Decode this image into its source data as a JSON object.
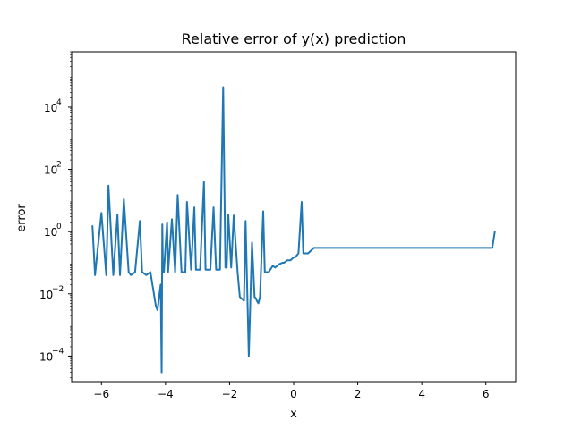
{
  "chart_data": {
    "type": "line",
    "title": "Relative error of y(x) prediction",
    "xlabel": "x",
    "ylabel": "error",
    "xlim": [
      -6.93,
      6.93
    ],
    "ylim": [
      1.51e-05,
      602000
    ],
    "yscale": "log",
    "grid": false,
    "colors": {
      "line": "#1f77b4"
    },
    "x_ticks": [
      {
        "value": -6,
        "label": "−6"
      },
      {
        "value": -4,
        "label": "−4"
      },
      {
        "value": -2,
        "label": "−2"
      },
      {
        "value": 0,
        "label": "0"
      },
      {
        "value": 2,
        "label": "2"
      },
      {
        "value": 4,
        "label": "4"
      },
      {
        "value": 6,
        "label": "6"
      }
    ],
    "y_ticks": [
      {
        "value": 0.0001,
        "base": "10",
        "exp": "−4"
      },
      {
        "value": 0.01,
        "base": "10",
        "exp": "−2"
      },
      {
        "value": 1,
        "base": "10",
        "exp": "0"
      },
      {
        "value": 100,
        "base": "10",
        "exp": "2"
      },
      {
        "value": 10000,
        "base": "10",
        "exp": "4"
      }
    ],
    "series": [
      {
        "x": [
          -6.28,
          -6.2,
          -6.0,
          -5.85,
          -5.78,
          -5.63,
          -5.5,
          -5.42,
          -5.3,
          -5.15,
          -5.08,
          -4.95,
          -4.8,
          -4.73,
          -4.6,
          -4.47,
          -4.3,
          -4.25,
          -4.2,
          -4.15,
          -4.12,
          -4.1,
          -4.08,
          -4.05,
          -3.95,
          -3.92,
          -3.8,
          -3.7,
          -3.62,
          -3.5,
          -3.38,
          -3.33,
          -3.2,
          -3.1,
          -3.05,
          -2.92,
          -2.8,
          -2.75,
          -2.6,
          -2.5,
          -2.42,
          -2.3,
          -2.2,
          -2.13,
          -2.09,
          -2.04,
          -1.95,
          -1.87,
          -1.75,
          -1.68,
          -1.55,
          -1.5,
          -1.4,
          -1.3,
          -1.22,
          -1.17,
          -1.15,
          -1.1,
          -1.05,
          -0.95,
          -0.9,
          -0.78,
          -0.65,
          -0.58,
          -0.45,
          -0.35,
          -0.3,
          -0.2,
          -0.1,
          0.0,
          0.05,
          0.15,
          0.25,
          0.3,
          0.45,
          0.55,
          0.63,
          0.75,
          0.85,
          0.95,
          1.05,
          1.15,
          1.25,
          1.35,
          1.45,
          1.55,
          1.65,
          1.75,
          1.85,
          1.95,
          2.05,
          2.1,
          2.15,
          2.25,
          2.35,
          2.45,
          2.55,
          2.7,
          2.8,
          2.9,
          3.0,
          3.15,
          3.3,
          3.4,
          3.5,
          3.6,
          3.7,
          3.85,
          3.95,
          4.05,
          4.15,
          4.25,
          4.4,
          4.5,
          4.6,
          4.7,
          4.8,
          4.9,
          5.0,
          5.05,
          5.15,
          5.25,
          5.35,
          5.4,
          5.45,
          5.5,
          5.55,
          5.6,
          5.65,
          5.75,
          5.85,
          5.95,
          6.05,
          6.2,
          6.28
        ],
        "y": [
          1.5,
          0.04,
          4,
          0.04,
          30,
          0.04,
          3.5,
          0.04,
          11,
          0.05,
          0.04,
          0.05,
          2.2,
          0.05,
          0.04,
          0.05,
          0.004,
          0.003,
          0.008,
          0.02,
          3e-05,
          1.7,
          0.06,
          0.05,
          2,
          0.05,
          2.5,
          0.05,
          15,
          0.05,
          0.05,
          9,
          0.06,
          6,
          0.06,
          0.06,
          40,
          0.06,
          0.06,
          6,
          0.06,
          0.06,
          44000,
          0.07,
          0.07,
          3.5,
          0.07,
          3.3,
          0.05,
          0.008,
          0.006,
          2.2,
          0.0001,
          0.45,
          0.008,
          0.007,
          0.006,
          0.005,
          0.008,
          4.5,
          0.05,
          0.05,
          0.08,
          0.07,
          0.09,
          0.1,
          0.1,
          0.12,
          0.12,
          0.15,
          0.15,
          0.2,
          9,
          0.2,
          0.2,
          0.25,
          0.3,
          0.3,
          0.3,
          0.3,
          0.3,
          0.3,
          0.3,
          0.3,
          0.3,
          0.3,
          0.3,
          0.3,
          0.3,
          0.3,
          0.3,
          0.3,
          0.3,
          0.3,
          0.3,
          0.3,
          0.3,
          0.3,
          0.3,
          0.3,
          0.3,
          0.3,
          0.3,
          0.3,
          0.3,
          0.3,
          0.3,
          0.3,
          0.3,
          0.3,
          0.3,
          0.3,
          0.3,
          0.3,
          0.3,
          0.3,
          0.3,
          0.3,
          0.3,
          0.3,
          0.3,
          0.3,
          0.3,
          0.3,
          0.3,
          0.3,
          0.3,
          0.3,
          0.3,
          0.3,
          0.3,
          0.3,
          0.3,
          0.3,
          1.0
        ]
      }
    ]
  }
}
